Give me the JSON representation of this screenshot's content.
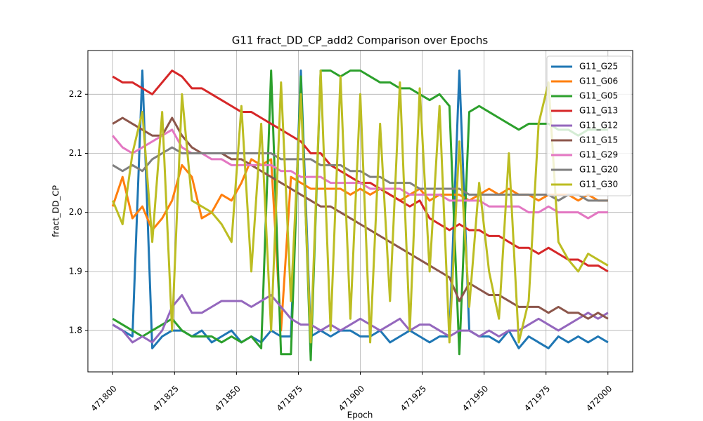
{
  "chart_data": {
    "type": "line",
    "title": "G11 fract_DD_CP_add2 Comparison over Epochs",
    "xlabel": "Epoch",
    "ylabel": "fract_DD_CP",
    "x": [
      471800,
      471804,
      471808,
      471812,
      471816,
      471820,
      471824,
      471828,
      471832,
      471836,
      471840,
      471844,
      471848,
      471852,
      471856,
      471860,
      471864,
      471868,
      471872,
      471876,
      471880,
      471884,
      471888,
      471892,
      471896,
      471900,
      471904,
      471908,
      471912,
      471916,
      471920,
      471924,
      471928,
      471932,
      471936,
      471940,
      471944,
      471948,
      471952,
      471956,
      471960,
      471964,
      471968,
      471972,
      471976,
      471980,
      471984,
      471988,
      471992,
      471996,
      472000
    ],
    "series": [
      {
        "name": "G11_G25",
        "color": "#1f77b4",
        "values": [
          1.81,
          1.8,
          1.79,
          2.24,
          1.77,
          1.79,
          1.8,
          1.8,
          1.79,
          1.8,
          1.78,
          1.79,
          1.8,
          1.78,
          1.79,
          1.78,
          1.8,
          1.79,
          1.79,
          2.24,
          1.79,
          1.8,
          1.79,
          1.8,
          1.8,
          1.79,
          1.79,
          1.8,
          1.78,
          1.79,
          1.8,
          1.79,
          1.78,
          1.79,
          1.79,
          2.24,
          1.8,
          1.79,
          1.79,
          1.78,
          1.8,
          1.77,
          1.79,
          1.78,
          1.77,
          1.79,
          1.78,
          1.79,
          1.78,
          1.79,
          1.78
        ]
      },
      {
        "name": "G11_G06",
        "color": "#ff7f0e",
        "values": [
          2.01,
          2.06,
          1.99,
          2.01,
          1.97,
          1.99,
          2.02,
          2.08,
          2.06,
          1.99,
          2.0,
          2.03,
          2.02,
          2.05,
          2.09,
          2.08,
          2.09,
          1.8,
          2.06,
          2.05,
          2.04,
          2.04,
          2.04,
          2.04,
          2.03,
          2.04,
          2.03,
          2.04,
          2.03,
          2.02,
          2.03,
          2.04,
          2.02,
          2.03,
          2.03,
          2.03,
          2.02,
          2.03,
          2.04,
          2.03,
          2.04,
          2.03,
          2.03,
          2.02,
          2.03,
          2.03,
          2.03,
          2.02,
          2.03,
          2.02,
          2.02
        ]
      },
      {
        "name": "G11_G05",
        "color": "#2ca02c",
        "values": [
          1.82,
          1.81,
          1.8,
          1.79,
          1.8,
          1.81,
          1.82,
          1.8,
          1.79,
          1.79,
          1.79,
          1.78,
          1.79,
          1.78,
          1.79,
          1.77,
          2.24,
          1.76,
          1.76,
          2.23,
          1.75,
          2.24,
          2.24,
          2.23,
          2.24,
          2.24,
          2.23,
          2.22,
          2.22,
          2.21,
          2.21,
          2.2,
          2.19,
          2.2,
          2.18,
          1.76,
          2.17,
          2.18,
          2.17,
          2.16,
          2.15,
          2.14,
          2.15,
          2.15,
          2.15,
          2.14,
          2.14,
          2.13,
          2.14,
          2.14,
          2.14
        ]
      },
      {
        "name": "G11_G13",
        "color": "#d62728",
        "values": [
          2.23,
          2.22,
          2.22,
          2.21,
          2.2,
          2.22,
          2.24,
          2.23,
          2.21,
          2.21,
          2.2,
          2.19,
          2.18,
          2.17,
          2.17,
          2.16,
          2.15,
          2.14,
          2.13,
          2.12,
          2.1,
          2.1,
          2.08,
          2.07,
          2.06,
          2.05,
          2.05,
          2.04,
          2.03,
          2.02,
          2.01,
          2.02,
          1.99,
          1.98,
          1.97,
          1.98,
          1.97,
          1.97,
          1.96,
          1.96,
          1.95,
          1.94,
          1.94,
          1.93,
          1.94,
          1.93,
          1.92,
          1.92,
          1.91,
          1.91,
          1.9
        ]
      },
      {
        "name": "G11_G12",
        "color": "#9467bd",
        "values": [
          1.81,
          1.8,
          1.78,
          1.79,
          1.78,
          1.8,
          1.84,
          1.86,
          1.83,
          1.83,
          1.84,
          1.85,
          1.85,
          1.85,
          1.84,
          1.85,
          1.86,
          1.84,
          1.82,
          1.81,
          1.81,
          1.8,
          1.81,
          1.8,
          1.81,
          1.82,
          1.81,
          1.8,
          1.81,
          1.82,
          1.8,
          1.81,
          1.81,
          1.8,
          1.79,
          1.8,
          1.8,
          1.79,
          1.8,
          1.79,
          1.8,
          1.8,
          1.81,
          1.82,
          1.81,
          1.8,
          1.81,
          1.82,
          1.83,
          1.82,
          1.83
        ]
      },
      {
        "name": "G11_G15",
        "color": "#8c564b",
        "values": [
          2.15,
          2.16,
          2.15,
          2.14,
          2.13,
          2.13,
          2.16,
          2.13,
          2.11,
          2.1,
          2.1,
          2.1,
          2.09,
          2.09,
          2.08,
          2.07,
          2.06,
          2.05,
          2.04,
          2.03,
          2.02,
          2.01,
          2.01,
          2.0,
          1.99,
          1.98,
          1.97,
          1.96,
          1.95,
          1.94,
          1.93,
          1.92,
          1.91,
          1.9,
          1.89,
          1.85,
          1.88,
          1.87,
          1.86,
          1.86,
          1.85,
          1.84,
          1.84,
          1.84,
          1.83,
          1.84,
          1.83,
          1.83,
          1.82,
          1.83,
          1.82
        ]
      },
      {
        "name": "G11_G29",
        "color": "#e377c2",
        "values": [
          2.13,
          2.11,
          2.1,
          2.11,
          2.12,
          2.13,
          2.14,
          2.11,
          2.1,
          2.1,
          2.09,
          2.09,
          2.08,
          2.08,
          2.08,
          2.08,
          2.08,
          2.07,
          2.07,
          2.06,
          2.06,
          2.06,
          2.05,
          2.05,
          2.05,
          2.05,
          2.04,
          2.04,
          2.04,
          2.04,
          2.03,
          2.03,
          2.03,
          2.03,
          2.02,
          2.02,
          2.02,
          2.02,
          2.01,
          2.01,
          2.01,
          2.01,
          2.0,
          2.0,
          2.01,
          2.0,
          2.0,
          2.0,
          1.99,
          2.0,
          2.0
        ]
      },
      {
        "name": "G11_G20",
        "color": "#7f7f7f",
        "values": [
          2.08,
          2.07,
          2.08,
          2.07,
          2.09,
          2.1,
          2.11,
          2.1,
          2.1,
          2.1,
          2.1,
          2.1,
          2.1,
          2.1,
          2.1,
          2.1,
          2.1,
          2.09,
          2.09,
          2.09,
          2.09,
          2.08,
          2.08,
          2.08,
          2.07,
          2.07,
          2.06,
          2.06,
          2.05,
          2.05,
          2.05,
          2.04,
          2.04,
          2.04,
          2.04,
          2.04,
          2.03,
          2.03,
          2.03,
          2.03,
          2.03,
          2.03,
          2.03,
          2.03,
          2.03,
          2.02,
          2.03,
          2.03,
          2.02,
          2.02,
          2.02
        ]
      },
      {
        "name": "G11_G30",
        "color": "#bcbd22",
        "values": [
          2.02,
          1.98,
          2.1,
          2.17,
          1.95,
          2.17,
          1.8,
          2.2,
          2.02,
          2.01,
          2.0,
          1.98,
          1.95,
          2.18,
          1.9,
          2.15,
          1.8,
          2.22,
          1.85,
          2.2,
          1.78,
          2.24,
          1.8,
          2.23,
          1.82,
          2.2,
          1.78,
          2.15,
          1.85,
          2.22,
          1.8,
          2.21,
          1.9,
          2.18,
          1.78,
          2.12,
          1.84,
          2.05,
          1.9,
          1.82,
          2.1,
          1.78,
          1.85,
          2.15,
          2.22,
          1.95,
          1.92,
          1.9,
          1.93,
          1.92,
          1.91
        ]
      }
    ],
    "xlim": [
      471790,
      472010
    ],
    "xticks": [
      471800,
      471825,
      471850,
      471875,
      471900,
      471925,
      471950,
      471975,
      472000
    ],
    "ylim": [
      1.73,
      2.274
    ],
    "yticks": [
      1.8,
      1.9,
      {
        "value": 2,
        "label": "2.0"
      },
      2.1,
      2.2
    ],
    "grid": true,
    "legend": "upper right"
  }
}
